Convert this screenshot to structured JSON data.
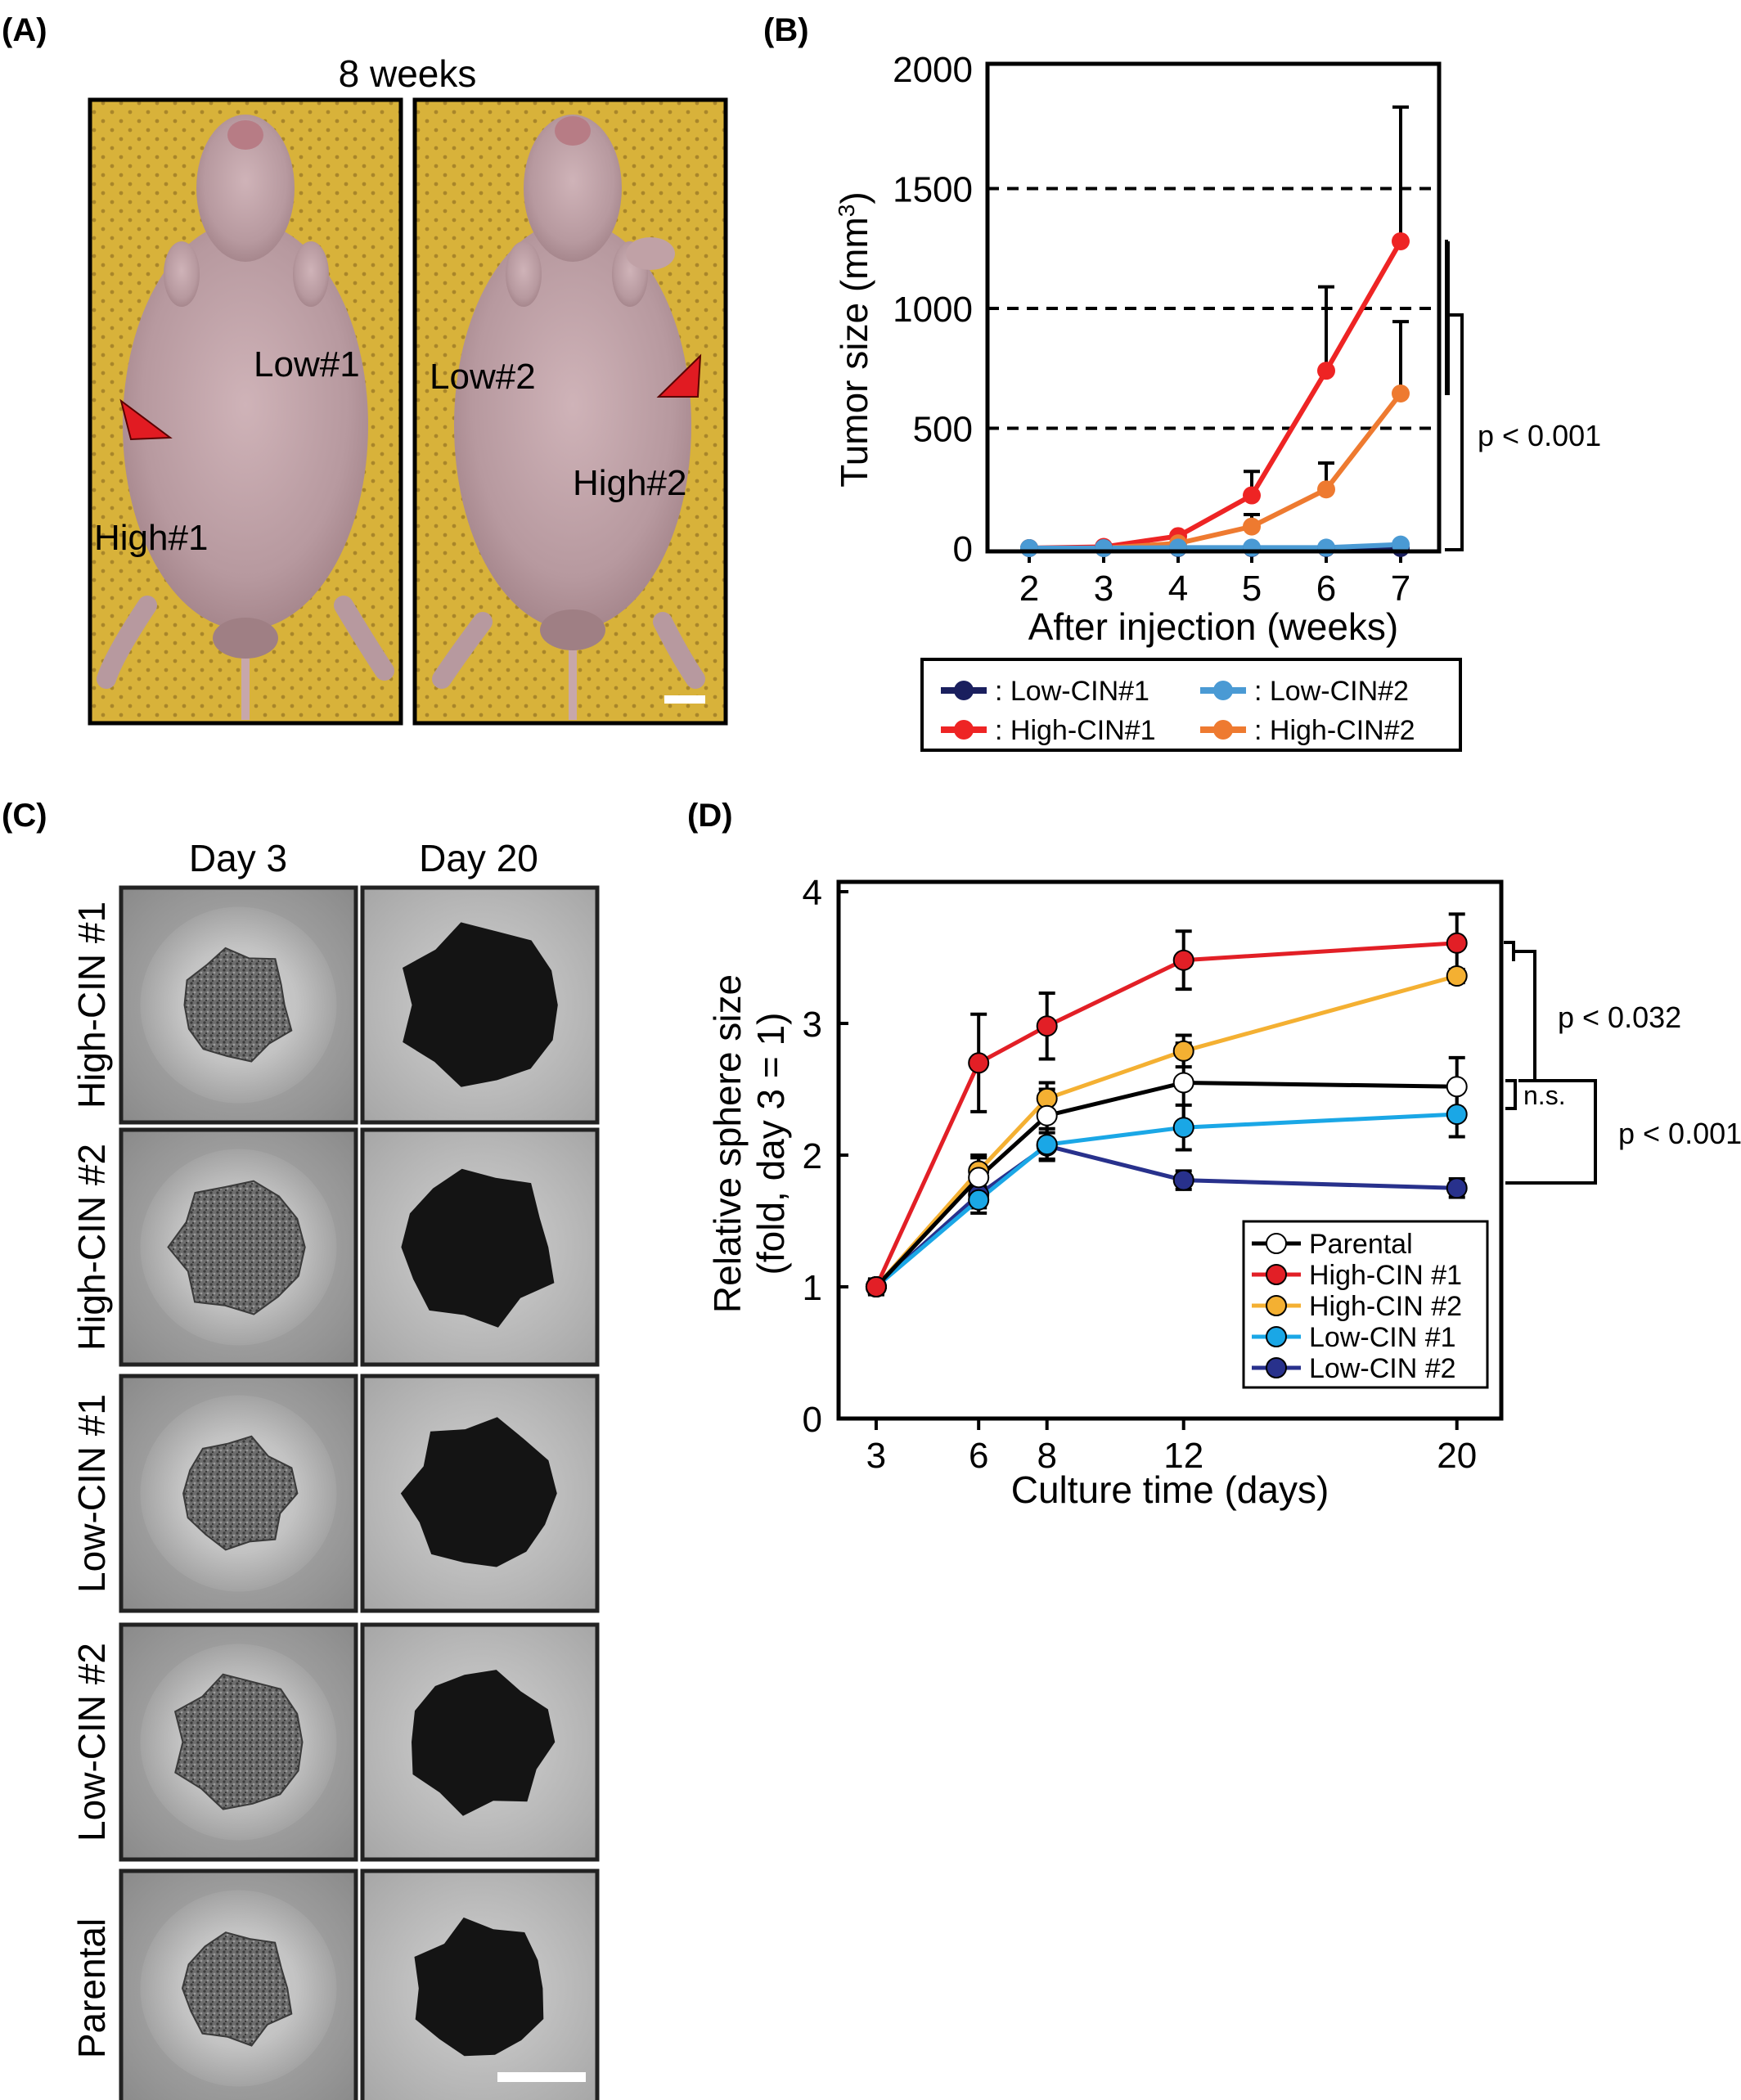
{
  "panels": {
    "a": {
      "label": "(A)",
      "title": "8 weeks",
      "labels": [
        "Low#1",
        "High#1",
        "Low#2",
        "High#2"
      ]
    },
    "b": {
      "label": "(B)"
    },
    "c": {
      "label": "(C)",
      "columns": [
        "Day 3",
        "Day 20"
      ],
      "rows": [
        "High-CIN #1",
        "High-CIN #2",
        "Low-CIN #1",
        "Low-CIN #2",
        "Parental"
      ]
    },
    "d": {
      "label": "(D)"
    }
  },
  "colors": {
    "low_cin_1_b": "#1a1f5e",
    "low_cin_2_b": "#4a9ad4",
    "high_cin_1_b": "#ee2424",
    "high_cin_2_b": "#ee7a30",
    "parental": "#000000",
    "high_cin_1_d": "#e21f26",
    "high_cin_2_d": "#f4b032",
    "low_cin_1_d": "#1aa7e6",
    "low_cin_2_d": "#28318c",
    "mouse_bg": "#d8b23a",
    "arrow": "#e11b22"
  },
  "chart_data": [
    {
      "id": "B",
      "type": "line",
      "ylabel_main": "Tumor size (mm",
      "ylabel_sup": "3",
      "ylabel_end": ")",
      "xlabel": "After injection (weeks)",
      "x": [
        2,
        3,
        4,
        5,
        6,
        7
      ],
      "ylim": [
        0,
        2000
      ],
      "yticks": [
        0,
        500,
        1000,
        1500,
        2000
      ],
      "reference_lines": [
        500,
        1000,
        1500
      ],
      "series": [
        {
          "name": ": Low-CIN#1",
          "color": "#1a1f5e",
          "values": [
            0,
            0,
            0,
            0,
            0,
            0
          ],
          "err": [
            0,
            0,
            0,
            0,
            0,
            15
          ]
        },
        {
          "name": ": Low-CIN#2",
          "color": "#4a9ad4",
          "values": [
            0,
            0,
            2,
            2,
            2,
            15
          ],
          "err": [
            0,
            0,
            0,
            0,
            0,
            0
          ]
        },
        {
          "name": ": High-CIN#1",
          "color": "#ee2424",
          "values": [
            0,
            5,
            50,
            220,
            740,
            1280
          ],
          "err": [
            0,
            0,
            0,
            100,
            350,
            560
          ]
        },
        {
          "name": ": High-CIN#2",
          "color": "#ee7a30",
          "values": [
            0,
            0,
            20,
            90,
            245,
            645
          ],
          "err": [
            0,
            0,
            0,
            50,
            110,
            300
          ]
        }
      ],
      "annotation": "p < 0.001",
      "legend_position": "below"
    },
    {
      "id": "D",
      "type": "line",
      "ylabel_line1": "Relative sphere size",
      "ylabel_line2": "(fold, day 3 = 1)",
      "xlabel": "Culture time (days)",
      "x": [
        3,
        6,
        8,
        12,
        20
      ],
      "ylim": [
        0,
        4
      ],
      "yticks": [
        0,
        1,
        2,
        3,
        4
      ],
      "series": [
        {
          "name": "Parental",
          "color": "#000000",
          "marker": "#ffffff",
          "values": [
            1,
            1.83,
            2.3,
            2.55,
            2.52
          ],
          "err": [
            0.06,
            0.15,
            0.2,
            0.3,
            0.22
          ]
        },
        {
          "name": "High-CIN #1",
          "color": "#e21f26",
          "marker": "#e21f26",
          "values": [
            1,
            2.7,
            2.98,
            3.48,
            3.61
          ],
          "err": [
            0.05,
            0.37,
            0.25,
            0.22,
            0.22
          ]
        },
        {
          "name": "High-CIN #2",
          "color": "#f4b032",
          "marker": "#f4b032",
          "values": [
            1,
            1.88,
            2.43,
            2.79,
            3.36
          ],
          "err": [
            0.05,
            0.12,
            0.12,
            0.12,
            0.05
          ]
        },
        {
          "name": "Low-CIN #1",
          "color": "#1aa7e6",
          "marker": "#1aa7e6",
          "values": [
            1,
            1.66,
            2.08,
            2.21,
            2.31
          ],
          "err": [
            0.05,
            0.1,
            0.12,
            0.17,
            0.17
          ]
        },
        {
          "name": "Low-CIN #2",
          "color": "#28318c",
          "marker": "#28318c",
          "values": [
            1,
            1.7,
            2.07,
            1.81,
            1.75
          ],
          "err": [
            0.05,
            0.1,
            0.1,
            0.07,
            0.07
          ]
        }
      ],
      "annotations": [
        "p < 0.032",
        "n.s.",
        "p < 0.001"
      ],
      "legend_position": "lower-right inside"
    }
  ]
}
